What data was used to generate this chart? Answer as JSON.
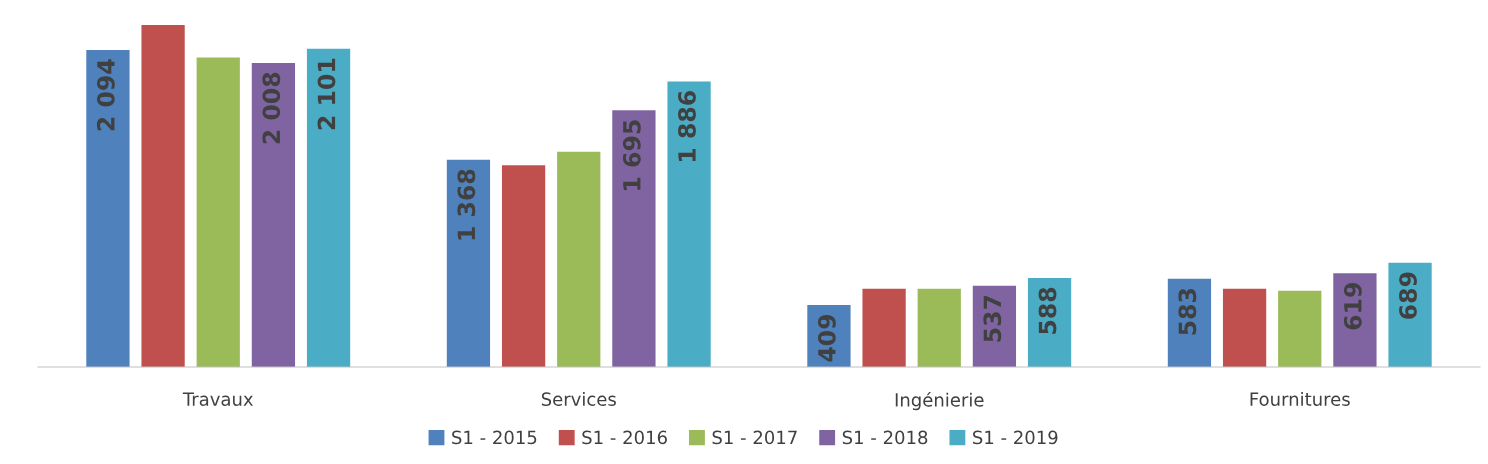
{
  "chart_data": {
    "type": "bar",
    "categories": [
      "Travaux",
      "Services",
      "Ingénierie",
      "Fournitures"
    ],
    "series": [
      {
        "name": "S1 - 2015",
        "color": "#4f81bd",
        "values": [
          2094,
          1368,
          409,
          583
        ],
        "value_labels": [
          "2 094",
          "1 368",
          "409",
          "583"
        ]
      },
      {
        "name": "S1 - 2016",
        "color": "#c0504d",
        "values": [
          2258,
          1333,
          516,
          516
        ],
        "value_labels": [
          null,
          null,
          null,
          null
        ]
      },
      {
        "name": "S1 - 2017",
        "color": "#9bbb59",
        "values": [
          2044,
          1421,
          516,
          503
        ],
        "value_labels": [
          null,
          null,
          null,
          null
        ]
      },
      {
        "name": "S1 - 2018",
        "color": "#8064a2",
        "values": [
          2008,
          1695,
          537,
          619
        ],
        "value_labels": [
          "2 008",
          "1 695",
          "537",
          "619"
        ]
      },
      {
        "name": "S1 - 2019",
        "color": "#4bacc6",
        "values": [
          2101,
          1886,
          588,
          689
        ],
        "value_labels": [
          "2 101",
          "1 886",
          "588",
          "689"
        ]
      }
    ],
    "legend": "bottom",
    "grid": false
  }
}
